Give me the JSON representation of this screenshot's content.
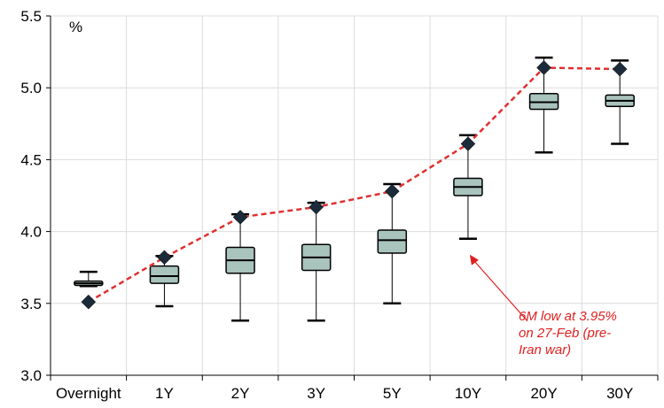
{
  "chart_data": {
    "type": "box",
    "y_unit_label": "%",
    "categories": [
      "Overnight",
      "1Y",
      "2Y",
      "3Y",
      "5Y",
      "10Y",
      "20Y",
      "30Y"
    ],
    "ylim": [
      3.0,
      5.5
    ],
    "yticks": [
      "3.0",
      "3.5",
      "4.0",
      "4.5",
      "5.0",
      "5.5"
    ],
    "grid": true,
    "box_color": "#a9c3bd",
    "current_color": "#e03030",
    "marker_color": "#1c2b3a",
    "boxes": [
      {
        "min": 3.62,
        "q1": 3.625,
        "median": 3.64,
        "q3": 3.655,
        "max": 3.72
      },
      {
        "min": 3.48,
        "q1": 3.64,
        "median": 3.69,
        "q3": 3.76,
        "max": 3.83
      },
      {
        "min": 3.38,
        "q1": 3.71,
        "median": 3.8,
        "q3": 3.89,
        "max": 4.12
      },
      {
        "min": 3.38,
        "q1": 3.73,
        "median": 3.82,
        "q3": 3.91,
        "max": 4.2
      },
      {
        "min": 3.5,
        "q1": 3.85,
        "median": 3.94,
        "q3": 4.01,
        "max": 4.33
      },
      {
        "min": 3.95,
        "q1": 4.25,
        "median": 4.31,
        "q3": 4.37,
        "max": 4.67
      },
      {
        "min": 4.55,
        "q1": 4.85,
        "median": 4.9,
        "q3": 4.96,
        "max": 5.21
      },
      {
        "min": 4.61,
        "q1": 4.87,
        "median": 4.91,
        "q3": 4.95,
        "max": 5.19
      }
    ],
    "current": [
      3.51,
      3.82,
      4.1,
      4.17,
      4.28,
      4.61,
      5.14,
      5.13
    ],
    "annotation": {
      "lines": [
        "6M low at 3.95%",
        "on 27-Feb (pre-",
        "Iran war)"
      ],
      "category": "10Y",
      "value": 3.95
    }
  }
}
